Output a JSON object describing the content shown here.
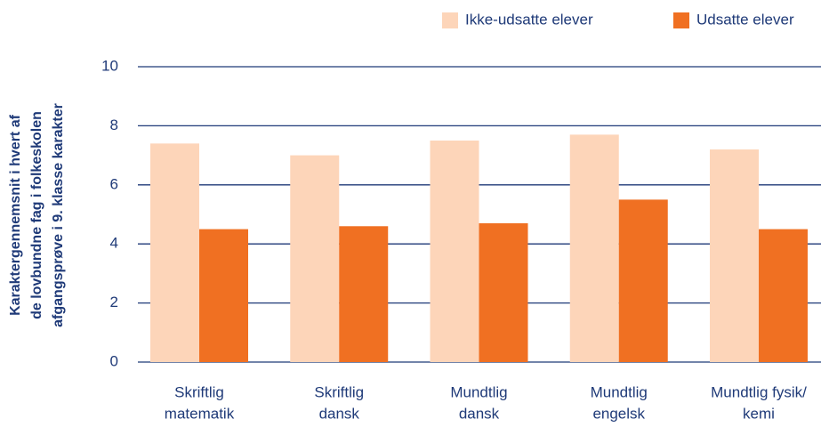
{
  "chart_data": {
    "type": "bar",
    "y_label": [
      "Karaktergennemsnit i hvert af",
      "de lovbundne fag i folkeskolen",
      "afgangsprøve i 9. klasse karakter"
    ],
    "categories": [
      [
        "Skriftlig",
        "matematik"
      ],
      [
        "Skriftlig",
        "dansk"
      ],
      [
        "Mundtlig",
        "dansk"
      ],
      [
        "Mundtlig",
        "engelsk"
      ],
      [
        "Mundtlig fysik/",
        "kemi"
      ]
    ],
    "series": [
      {
        "name": "Ikke-udsatte elever",
        "color": "#fdd5b9",
        "values": [
          7.4,
          7.0,
          7.5,
          7.7,
          7.2
        ]
      },
      {
        "name": "Udsatte elever",
        "color": "#f07022",
        "values": [
          4.5,
          4.6,
          4.7,
          5.5,
          4.5
        ]
      }
    ],
    "ylim": [
      0,
      10
    ],
    "yticks": [
      0,
      2,
      4,
      6,
      8,
      10
    ],
    "grid": true,
    "legend": "top-right"
  }
}
